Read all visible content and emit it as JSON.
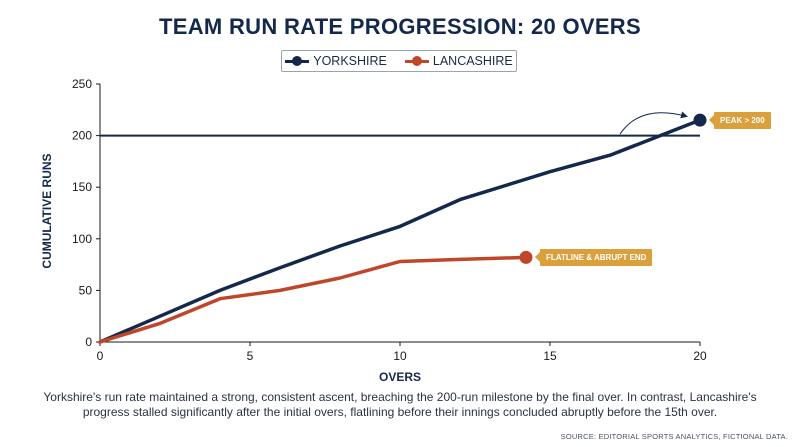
{
  "chart_data": {
    "type": "line",
    "title": "TEAM RUN RATE PROGRESSION: 20 OVERS",
    "xlabel": "OVERS",
    "ylabel": "CUMULATIVE RUNS",
    "xlim": [
      0,
      20
    ],
    "ylim": [
      0,
      250
    ],
    "xticks": [
      "0",
      "5",
      "10",
      "15",
      "20"
    ],
    "yticks": [
      "0",
      "50",
      "100",
      "150",
      "200",
      "250"
    ],
    "grid": false,
    "legend_position": "top-center",
    "reference_line": {
      "y": 200
    },
    "series": [
      {
        "name": "YORKSHIRE",
        "color": "#14284b",
        "x": [
          0,
          2,
          4,
          6,
          8,
          10,
          12,
          14,
          15,
          17,
          20
        ],
        "y": [
          0,
          25,
          50,
          72,
          93,
          112,
          138,
          156,
          165,
          181,
          215
        ]
      },
      {
        "name": "LANCASHIRE",
        "color": "#c0462a",
        "x": [
          0,
          2,
          4,
          6,
          8,
          10,
          12,
          14.2
        ],
        "y": [
          0,
          18,
          42,
          50,
          62,
          78,
          80,
          82
        ]
      }
    ],
    "annotations": [
      {
        "text": "PEAK > 200",
        "series": "YORKSHIRE",
        "x": 20,
        "y": 215
      },
      {
        "text": "FLATLINE & ABRUPT END",
        "series": "LANCASHIRE",
        "x": 14.2,
        "y": 82
      }
    ]
  },
  "caption": "Yorkshire's run rate maintained a strong, consistent ascent, breaching the 200-run milestone by the final over. In contrast, Lancashire's progress stalled significantly after the initial overs, flatlining before their innings concluded abruptly before the 15th over.",
  "source": "SOURCE: EDITORIAL SPORTS ANALYTICS, FICTIONAL DATA.",
  "colors": {
    "accent": "#d9a03c",
    "navy": "#14284b",
    "orange": "#c0462a"
  }
}
